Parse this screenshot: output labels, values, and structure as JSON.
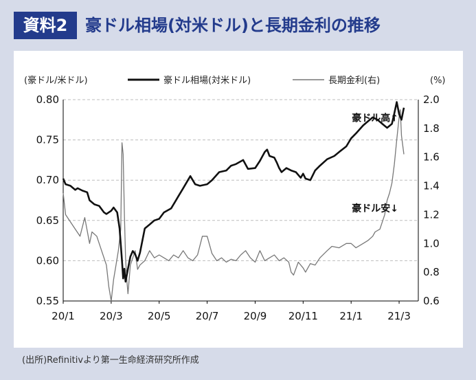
{
  "header": {
    "badge": "資料2",
    "title": "豪ドル相場(対米ドル)と長期金利の推移"
  },
  "source": "(出所)Refinitivより第一生命経済研究所作成",
  "colors": {
    "badge_bg": "#233b8c",
    "title": "#233b8c",
    "background": "#d6dbe9",
    "panel": "#ffffff",
    "aud_line": "#111111",
    "yield_line": "#777777"
  },
  "chart_data": {
    "type": "line",
    "title": "豪ドル相場(対米ドル)と長期金利の推移",
    "left_axis_label": "(豪ドル/米ドル)",
    "right_axis_label": "(%)",
    "xlim": [
      0,
      14.8
    ],
    "ylim_left": [
      0.55,
      0.8
    ],
    "ylim_right": [
      0.6,
      2.0
    ],
    "x_ticks": [
      {
        "x": 0,
        "label": "20/1"
      },
      {
        "x": 2,
        "label": "20/3"
      },
      {
        "x": 4,
        "label": "20/5"
      },
      {
        "x": 6,
        "label": "20/7"
      },
      {
        "x": 8,
        "label": "20/9"
      },
      {
        "x": 10,
        "label": "20/11"
      },
      {
        "x": 12,
        "label": "21/1"
      },
      {
        "x": 14,
        "label": "21/3"
      }
    ],
    "left_ticks": [
      "0.55",
      "0.60",
      "0.65",
      "0.70",
      "0.75",
      "0.80"
    ],
    "right_ticks": [
      "0.6",
      "0.8",
      "1.0",
      "1.2",
      "1.4",
      "1.6",
      "1.8",
      "2.0"
    ],
    "gridlines": "horizontal-dashed",
    "legend": {
      "position": "top",
      "entries": [
        "豪ドル相場(対米ドル)",
        "長期金利(右)"
      ]
    },
    "annotations": [
      {
        "text": "豪ドル高↑",
        "x": 13.0,
        "y_left": 0.773
      },
      {
        "text": "豪ドル安↓",
        "x": 13.0,
        "y_left": 0.661
      }
    ],
    "series": [
      {
        "name": "豪ドル相場(対米ドル)",
        "axis": "left",
        "x": [
          0,
          0.1,
          0.3,
          0.5,
          0.6,
          0.8,
          1.0,
          1.1,
          1.3,
          1.5,
          1.7,
          1.8,
          2.0,
          2.1,
          2.25,
          2.35,
          2.45,
          2.5,
          2.55,
          2.6,
          2.7,
          2.8,
          2.9,
          3.0,
          3.1,
          3.2,
          3.3,
          3.4,
          3.6,
          3.8,
          4.0,
          4.2,
          4.5,
          4.8,
          5.0,
          5.2,
          5.3,
          5.5,
          5.7,
          6.0,
          6.2,
          6.5,
          6.8,
          7.0,
          7.2,
          7.5,
          7.7,
          8.0,
          8.2,
          8.4,
          8.5,
          8.6,
          8.8,
          8.9,
          9.0,
          9.1,
          9.3,
          9.5,
          9.7,
          9.9,
          10.0,
          10.1,
          10.3,
          10.5,
          10.7,
          11.0,
          11.3,
          11.5,
          11.8,
          12.0,
          12.2,
          12.5,
          12.7,
          12.9,
          13.1,
          13.3,
          13.5,
          13.7,
          13.8,
          13.9,
          14.0,
          14.1,
          14.2
        ],
        "values": [
          0.702,
          0.695,
          0.693,
          0.688,
          0.69,
          0.687,
          0.685,
          0.675,
          0.67,
          0.668,
          0.66,
          0.658,
          0.662,
          0.666,
          0.66,
          0.64,
          0.6,
          0.578,
          0.59,
          0.574,
          0.59,
          0.605,
          0.612,
          0.608,
          0.6,
          0.61,
          0.625,
          0.64,
          0.645,
          0.65,
          0.652,
          0.66,
          0.665,
          0.68,
          0.69,
          0.7,
          0.705,
          0.695,
          0.693,
          0.695,
          0.7,
          0.71,
          0.712,
          0.718,
          0.72,
          0.725,
          0.714,
          0.715,
          0.724,
          0.735,
          0.738,
          0.73,
          0.728,
          0.722,
          0.715,
          0.71,
          0.715,
          0.712,
          0.71,
          0.703,
          0.708,
          0.702,
          0.7,
          0.712,
          0.718,
          0.726,
          0.73,
          0.735,
          0.742,
          0.752,
          0.758,
          0.768,
          0.773,
          0.778,
          0.775,
          0.77,
          0.765,
          0.77,
          0.783,
          0.797,
          0.782,
          0.775,
          0.79
        ]
      },
      {
        "name": "長期金利(右)",
        "axis": "right",
        "x": [
          0,
          0.1,
          0.3,
          0.5,
          0.7,
          0.9,
          1.1,
          1.2,
          1.4,
          1.6,
          1.8,
          1.9,
          2.0,
          2.1,
          2.2,
          2.3,
          2.4,
          2.45,
          2.5,
          2.55,
          2.6,
          2.65,
          2.7,
          2.8,
          2.9,
          3.0,
          3.1,
          3.2,
          3.4,
          3.6,
          3.8,
          4.0,
          4.2,
          4.4,
          4.6,
          4.8,
          5.0,
          5.2,
          5.4,
          5.6,
          5.8,
          6.0,
          6.2,
          6.4,
          6.6,
          6.8,
          7.0,
          7.2,
          7.4,
          7.6,
          7.8,
          8.0,
          8.2,
          8.4,
          8.6,
          8.8,
          9.0,
          9.2,
          9.4,
          9.5,
          9.6,
          9.8,
          10.0,
          10.1,
          10.3,
          10.5,
          10.7,
          11.0,
          11.2,
          11.5,
          11.8,
          12.0,
          12.2,
          12.5,
          12.7,
          12.9,
          13.0,
          13.2,
          13.4,
          13.5,
          13.6,
          13.7,
          13.8,
          13.9,
          14.0,
          14.05,
          14.1,
          14.2
        ],
        "values": [
          1.35,
          1.2,
          1.15,
          1.1,
          1.05,
          1.18,
          1.0,
          1.08,
          1.05,
          0.95,
          0.85,
          0.7,
          0.6,
          0.75,
          0.85,
          0.95,
          1.1,
          1.7,
          1.62,
          1.2,
          0.9,
          0.75,
          0.65,
          0.85,
          0.9,
          0.95,
          0.82,
          0.85,
          0.88,
          0.95,
          0.9,
          0.92,
          0.9,
          0.88,
          0.92,
          0.9,
          0.95,
          0.9,
          0.88,
          0.92,
          1.05,
          1.05,
          0.93,
          0.88,
          0.9,
          0.87,
          0.89,
          0.88,
          0.92,
          0.95,
          0.9,
          0.87,
          0.95,
          0.88,
          0.9,
          0.92,
          0.88,
          0.9,
          0.87,
          0.8,
          0.78,
          0.87,
          0.83,
          0.8,
          0.86,
          0.85,
          0.9,
          0.95,
          0.98,
          0.97,
          1.0,
          1.0,
          0.97,
          1.0,
          1.02,
          1.05,
          1.08,
          1.1,
          1.2,
          1.3,
          1.35,
          1.42,
          1.55,
          1.72,
          1.88,
          1.93,
          1.75,
          1.62
        ]
      }
    ]
  }
}
